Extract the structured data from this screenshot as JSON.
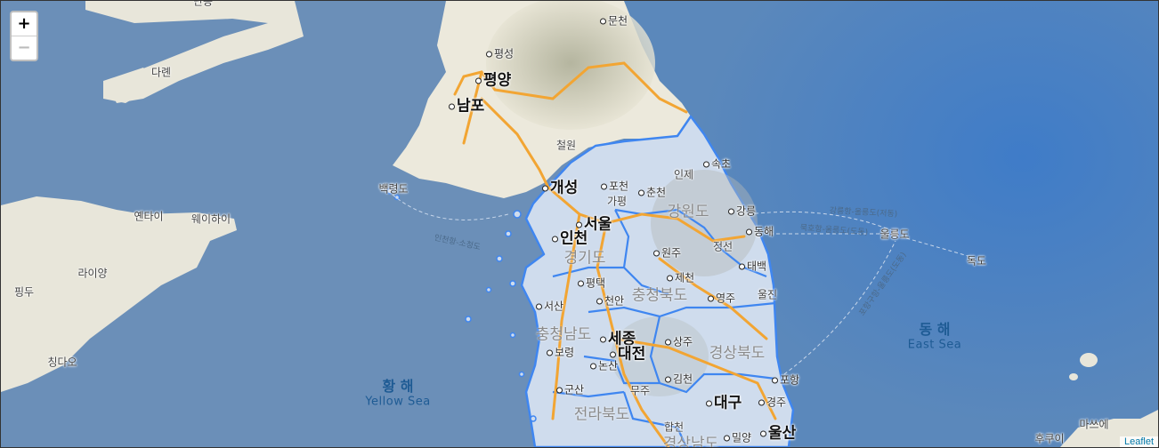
{
  "controls": {
    "zoom_in": "+",
    "zoom_out": "−"
  },
  "attribution": "Leaflet",
  "colors": {
    "sea": "#5b86b8",
    "sea_deep": "#3e78c0",
    "land": "#ece9dc",
    "mountain": "#b9b9a5",
    "region_fill": "#cfdced",
    "region_border": "#3f86f0",
    "highway": "#f2a533"
  },
  "map": {
    "labels": [
      {
        "id": "dalian",
        "text": "다롄",
        "kind": "land"
      },
      {
        "id": "dandong",
        "text": "단동",
        "kind": "land"
      },
      {
        "id": "yantai",
        "text": "옌타이",
        "kind": "land"
      },
      {
        "id": "weihai",
        "text": "웨이하이",
        "kind": "land"
      },
      {
        "id": "laiyang",
        "text": "라이양",
        "kind": "land"
      },
      {
        "id": "pingdu",
        "text": "핑두",
        "kind": "land"
      },
      {
        "id": "qingdao",
        "text": "칭다오",
        "kind": "land"
      },
      {
        "id": "cheolwon",
        "text": "철원",
        "kind": "land"
      },
      {
        "id": "inje",
        "text": "인제",
        "kind": "land"
      },
      {
        "id": "gapyeong",
        "text": "가평",
        "kind": "land"
      },
      {
        "id": "jeongseon",
        "text": "정선",
        "kind": "land"
      },
      {
        "id": "uljin",
        "text": "울진",
        "kind": "land"
      },
      {
        "id": "muju",
        "text": "무주",
        "kind": "land"
      },
      {
        "id": "dokdo",
        "text": "독도",
        "kind": "land"
      },
      {
        "id": "masue",
        "text": "마쓰에",
        "kind": "land"
      },
      {
        "id": "hukui",
        "text": "후쿠이",
        "kind": "land"
      },
      {
        "id": "gangwon",
        "text": "강원도",
        "kind": "prov"
      },
      {
        "id": "gyeonggi",
        "text": "경기도",
        "kind": "prov"
      },
      {
        "id": "chungbuk",
        "text": "충청북도",
        "kind": "prov"
      },
      {
        "id": "chungnam",
        "text": "충청남도",
        "kind": "prov"
      },
      {
        "id": "gyeongbuk",
        "text": "경상북도",
        "kind": "prov"
      },
      {
        "id": "jeonbuk",
        "text": "전라북도",
        "kind": "prov"
      },
      {
        "id": "gyeongnam",
        "text": "경상남도",
        "kind": "prov"
      },
      {
        "id": "pyongyang",
        "text": "평양",
        "kind": "big city"
      },
      {
        "id": "nampo",
        "text": "남포",
        "kind": "big city"
      },
      {
        "id": "kaesong",
        "text": "개성",
        "kind": "big city"
      },
      {
        "id": "seoul",
        "text": "서울",
        "kind": "big city"
      },
      {
        "id": "incheon",
        "text": "인천",
        "kind": "big city"
      },
      {
        "id": "sejong",
        "text": "세종",
        "kind": "big city"
      },
      {
        "id": "daejeon",
        "text": "대전",
        "kind": "big city"
      },
      {
        "id": "daegu",
        "text": "대구",
        "kind": "big city"
      },
      {
        "id": "ulsan",
        "text": "울산",
        "kind": "big city"
      },
      {
        "id": "muncheon",
        "text": "문천",
        "kind": "city"
      },
      {
        "id": "pyeongseong",
        "text": "평성",
        "kind": "city"
      },
      {
        "id": "sokcho",
        "text": "속초",
        "kind": "city"
      },
      {
        "id": "pocheon",
        "text": "포천",
        "kind": "city"
      },
      {
        "id": "chuncheon",
        "text": "춘천",
        "kind": "city"
      },
      {
        "id": "gangneung",
        "text": "강릉",
        "kind": "city"
      },
      {
        "id": "donghae",
        "text": "동해",
        "kind": "city"
      },
      {
        "id": "wonju",
        "text": "원주",
        "kind": "city"
      },
      {
        "id": "taebaek",
        "text": "태백",
        "kind": "city"
      },
      {
        "id": "pyeongtaek",
        "text": "평택",
        "kind": "city"
      },
      {
        "id": "jecheon",
        "text": "제천",
        "kind": "city"
      },
      {
        "id": "yeongju",
        "text": "영주",
        "kind": "city"
      },
      {
        "id": "cheonan",
        "text": "천안",
        "kind": "city"
      },
      {
        "id": "seosan",
        "text": "서산",
        "kind": "city"
      },
      {
        "id": "boryeong",
        "text": "보령",
        "kind": "city"
      },
      {
        "id": "nonsan",
        "text": "논산",
        "kind": "city"
      },
      {
        "id": "sangju",
        "text": "상주",
        "kind": "city"
      },
      {
        "id": "gimcheon",
        "text": "김천",
        "kind": "city"
      },
      {
        "id": "gunsan",
        "text": "군산",
        "kind": "city"
      },
      {
        "id": "pohang",
        "text": "포항",
        "kind": "city"
      },
      {
        "id": "gyeongju",
        "text": "경주",
        "kind": "city"
      },
      {
        "id": "hapcheon",
        "text": "합천",
        "kind": "city"
      },
      {
        "id": "miryang",
        "text": "밀양",
        "kind": "city"
      },
      {
        "id": "ulleungdo",
        "text": "울릉도",
        "kind": "land"
      },
      {
        "id": "baengnyeongdo",
        "text": "백령도",
        "kind": "land"
      },
      {
        "id": "yellow-sea-ko",
        "text": "황 해",
        "kind": "sea"
      },
      {
        "id": "yellow-sea-en",
        "text": "Yellow Sea",
        "kind": "sea-en"
      },
      {
        "id": "east-sea-ko",
        "text": "동 해",
        "kind": "sea"
      },
      {
        "id": "east-sea-en",
        "text": "East Sea",
        "kind": "sea-en"
      },
      {
        "id": "route-incheon-socheong",
        "text": "인천항-소청도",
        "kind": "route"
      },
      {
        "id": "route-gangneung-ulleung",
        "text": "강릉항-울릉도(저동)",
        "kind": "route"
      },
      {
        "id": "route-mukho-ulleung",
        "text": "묵호항-울릉도(도동)",
        "kind": "route"
      },
      {
        "id": "route-pohang-ulleung",
        "text": "포항구항-울릉도(도동)",
        "kind": "route"
      }
    ]
  }
}
